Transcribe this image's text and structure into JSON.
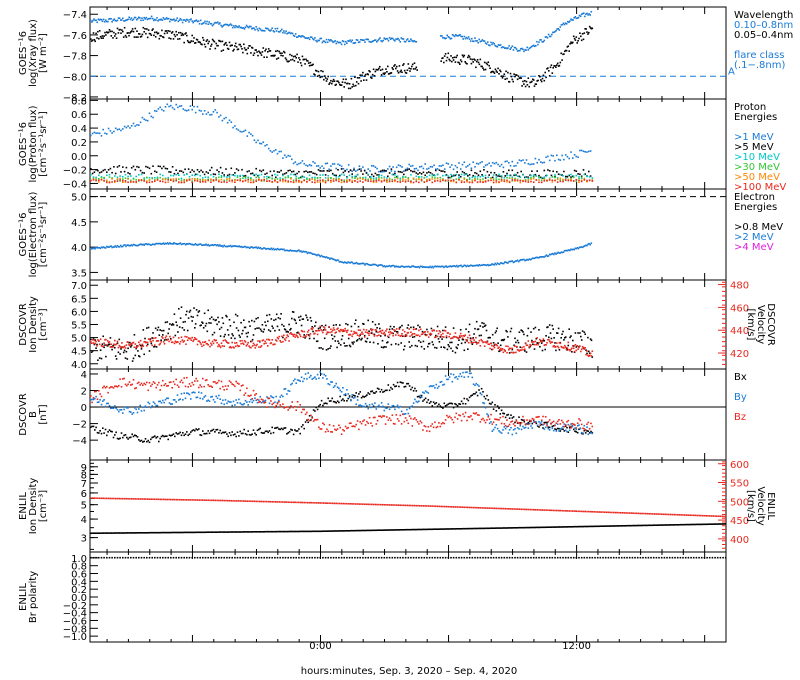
{
  "figure": {
    "xlabel": "hours:minutes, Sep.  3, 2020 – Sep.  4, 2020",
    "xticks": [
      {
        "h": 0,
        "label": "0:00"
      },
      {
        "h": 12,
        "label": "12:00"
      }
    ],
    "x_range_hours": [
      -10.8,
      19
    ]
  },
  "colors": {
    "black": "#000000",
    "blue": "#1a7bd6",
    "cyan": "#00c8c8",
    "green": "#35c635",
    "orange": "#ff8800",
    "red": "#e8281e",
    "magenta": "#e020e0"
  },
  "chart_data": [
    {
      "id": "xray",
      "type": "scatter",
      "ylabel_lines": [
        "GOES−16",
        "log(Xray flux)",
        "[W m−2]"
      ],
      "ylim": [
        -8.22,
        -7.33
      ],
      "yticks": [
        -7.4,
        -7.6,
        -7.8,
        -8.0,
        -8.2
      ],
      "ytick_labels": [
        "−7.4",
        "−7.6",
        "−7.8",
        "−8.0",
        "−8.2"
      ],
      "reference_line": {
        "y": -8.0,
        "label": "A",
        "color": "#1a7bd6"
      },
      "legend": [
        {
          "text": "Wavelength",
          "color": "#000000"
        },
        {
          "text": "0.10–0.8nm",
          "color": "#1a7bd6"
        },
        {
          "text": "0.05–0.4nm",
          "color": "#000000"
        },
        {
          "text": "flare class",
          "color": "#1a7bd6",
          "gap": true
        },
        {
          "text": "(.1−.8nm)",
          "color": "#1a7bd6"
        }
      ],
      "series": [
        {
          "color": "#1a7bd6",
          "spread": 0.02,
          "density": 5,
          "x": [
            -10.8,
            -8,
            -6,
            -4,
            -2,
            -0.5,
            0.8,
            2,
            3.3,
            4.5,
            5.2,
            5.6,
            6.5,
            8,
            9.5,
            10.5,
            11.5,
            12.3,
            12.7
          ],
          "y": [
            -7.47,
            -7.44,
            -7.47,
            -7.52,
            -7.56,
            -7.64,
            -7.68,
            -7.66,
            -7.64,
            -7.67,
            null,
            -7.62,
            -7.62,
            -7.69,
            -7.75,
            -7.64,
            -7.48,
            -7.41,
            -7.39
          ]
        },
        {
          "color": "#000000",
          "spread": 0.05,
          "density": 6,
          "x": [
            -10.8,
            -9,
            -7,
            -5,
            -3,
            -1,
            0.5,
            1.3,
            2,
            3,
            4.5,
            5.2,
            5.6,
            7,
            8,
            9,
            10,
            11,
            11.8,
            12.7
          ],
          "y": [
            -7.62,
            -7.57,
            -7.6,
            -7.7,
            -7.76,
            -7.84,
            -8.05,
            -8.08,
            -8.0,
            -7.93,
            -7.92,
            null,
            -7.82,
            -7.85,
            -7.92,
            -8.03,
            -8.08,
            -7.9,
            -7.66,
            -7.54
          ]
        }
      ]
    },
    {
      "id": "proton",
      "type": "scatter",
      "ylabel_lines": [
        "GOES−16",
        "log(Proton flux)",
        "[cm−2s−1sr−1]"
      ],
      "ylim": [
        -0.48,
        0.82
      ],
      "yticks": [
        0.8,
        0.6,
        0.4,
        0.2,
        0.0,
        -0.2,
        -0.4
      ],
      "ytick_labels": [
        "0.8",
        "0.6",
        "0.4",
        "0.2",
        "0.0",
        "−0.2",
        "−0.4"
      ],
      "legend": [
        {
          "text": "Proton",
          "color": "#000000"
        },
        {
          "text": "Energies",
          "color": "#000000"
        },
        {
          "text": ">1 MeV",
          "color": "#1a7bd6",
          "gap": true
        },
        {
          "text": ">5 MeV",
          "color": "#000000"
        },
        {
          "text": ">10 MeV",
          "color": "#00c8c8"
        },
        {
          "text": ">30 MeV",
          "color": "#35c635"
        },
        {
          "text": ">50 MeV",
          "color": "#ff8800"
        },
        {
          "text": ">100 MeV",
          "color": "#e8281e"
        }
      ],
      "series": [
        {
          "color": "#1a7bd6",
          "spread": 0.05,
          "density": 3,
          "x": [
            -10.8,
            -9,
            -7.3,
            -6.5,
            -5,
            -4,
            -3,
            -1,
            2,
            6,
            9,
            10.5,
            12,
            12.7
          ],
          "y": [
            0.3,
            0.4,
            0.7,
            0.7,
            0.62,
            0.42,
            0.2,
            -0.12,
            -0.2,
            -0.15,
            -0.12,
            -0.05,
            0.02,
            0.08
          ]
        },
        {
          "color": "#000000",
          "spread": 0.06,
          "density": 3,
          "x": [
            -10.8,
            -6,
            -2,
            2,
            6,
            10,
            12.7
          ],
          "y": [
            -0.2,
            -0.22,
            -0.26,
            -0.25,
            -0.26,
            -0.27,
            -0.25
          ]
        },
        {
          "color": "#00c8c8",
          "spread": 0.03,
          "density": 2,
          "x": [
            -10.8,
            12.7
          ],
          "y": [
            -0.3,
            -0.3
          ]
        },
        {
          "color": "#35c635",
          "spread": 0.03,
          "density": 2,
          "x": [
            -10.8,
            12.7
          ],
          "y": [
            -0.34,
            -0.34
          ]
        },
        {
          "color": "#ff8800",
          "spread": 0.03,
          "density": 2,
          "x": [
            -10.8,
            12.7
          ],
          "y": [
            -0.36,
            -0.36
          ]
        },
        {
          "color": "#e8281e",
          "spread": 0.02,
          "density": 2,
          "x": [
            -10.8,
            12.7
          ],
          "y": [
            -0.37,
            -0.37
          ]
        }
      ]
    },
    {
      "id": "electron",
      "type": "scatter",
      "ylabel_lines": [
        "GOES−16",
        "log(Electron flux)",
        "[cm−2s−1sr−1]"
      ],
      "ylim": [
        3.35,
        5.15
      ],
      "yticks": [
        5.0,
        4.5,
        4.0,
        3.5
      ],
      "ytick_labels": [
        "5.0",
        "4.5",
        "4.0",
        "3.5"
      ],
      "reference_line": {
        "y": 5.0,
        "color": "#000000"
      },
      "legend": [
        {
          "text": "Electron",
          "color": "#000000"
        },
        {
          "text": "Energies",
          "color": "#000000"
        },
        {
          "text": ">0.8 MeV",
          "color": "#000000",
          "gap": true
        },
        {
          "text": ">2 MeV",
          "color": "#1a7bd6"
        },
        {
          "text": ">4 MeV",
          "color": "#e020e0"
        }
      ],
      "series": [
        {
          "color": "#1a7bd6",
          "spread": 0.015,
          "density": 5,
          "x": [
            -10.8,
            -9,
            -7,
            -5,
            -3,
            -1,
            0,
            1,
            3,
            5,
            6.5,
            8,
            10,
            12,
            12.7
          ],
          "y": [
            3.97,
            4.03,
            4.07,
            4.03,
            3.98,
            3.92,
            3.82,
            3.7,
            3.62,
            3.6,
            3.62,
            3.65,
            3.77,
            3.97,
            4.07
          ]
        }
      ]
    },
    {
      "id": "density",
      "type": "scatter",
      "ylabel_lines": [
        "DSCOVR",
        "Ion Density",
        "[cm−3]"
      ],
      "ylim": [
        3.8,
        7.2
      ],
      "yticks": [
        4.0,
        4.5,
        5.0,
        5.5,
        6.0,
        6.5,
        7.0
      ],
      "ytick_labels": [
        "4.0",
        "4.5",
        "5.0",
        "5.5",
        "6.0",
        "6.5",
        "7.0"
      ],
      "right_axis": {
        "ylabel_lines": [
          "DSCOVR",
          "Velocity",
          "[km/s]"
        ],
        "ylim": [
          406,
          484
        ],
        "yticks": [
          420,
          440,
          460,
          480
        ],
        "ytick_labels": [
          "420",
          "440",
          "460",
          "480"
        ],
        "color": "#e8281e"
      },
      "series": [
        {
          "color": "#000000",
          "spread": 0.5,
          "density": 6,
          "x": [
            -10.8,
            -9,
            -8,
            -6.5,
            -5,
            -3,
            -1,
            0,
            2,
            3,
            5,
            6.5,
            7.5,
            8.5,
            9.5,
            11,
            12.7
          ],
          "y": [
            4.6,
            4.5,
            5.0,
            5.7,
            5.5,
            5.3,
            5.6,
            5.0,
            5.2,
            5.0,
            5.0,
            4.9,
            5.2,
            4.8,
            4.9,
            5.0,
            4.7
          ]
        },
        {
          "color": "#e8281e",
          "axis": "right",
          "spread": 3.5,
          "density": 6,
          "x": [
            -10.8,
            -9,
            -7,
            -5,
            -3,
            -1,
            0,
            2,
            4,
            6,
            7,
            8,
            9,
            10,
            11,
            12,
            12.7
          ],
          "y": [
            430,
            426,
            432,
            428,
            427,
            436,
            440,
            437,
            438,
            436,
            432,
            426,
            422,
            430,
            428,
            424,
            418
          ]
        }
      ]
    },
    {
      "id": "imf",
      "type": "scatter",
      "ylabel_lines": [
        "DSCOVR",
        "B",
        "[nT]"
      ],
      "ylim": [
        -6.4,
        4.6
      ],
      "yticks": [
        4,
        2,
        0,
        -2,
        -4
      ],
      "ytick_labels": [
        "4",
        "2",
        "0",
        "−2",
        "−4"
      ],
      "reference_line": {
        "y": 0,
        "color": "#000000"
      },
      "legend": [
        {
          "text": "Bx",
          "color": "#000000"
        },
        {
          "text": "By",
          "color": "#1a7bd6",
          "gap": true
        },
        {
          "text": "Bz",
          "color": "#e8281e",
          "gap": true
        }
      ],
      "series": [
        {
          "color": "#000000",
          "spread": 0.4,
          "density": 4,
          "x": [
            -10.8,
            -9.5,
            -8,
            -6,
            -4,
            -2,
            -1,
            0,
            2,
            3,
            4,
            5,
            6,
            7,
            7.5,
            8,
            9,
            10,
            11,
            12,
            12.7
          ],
          "y": [
            -2.5,
            -3.5,
            -4.0,
            -3.0,
            -3.2,
            -2.8,
            -3.0,
            0.5,
            1.5,
            2.2,
            2.8,
            0.5,
            0.0,
            1.0,
            2.0,
            0.2,
            -1.5,
            -2.0,
            -2.5,
            -2.8,
            -3.0
          ]
        },
        {
          "color": "#1a7bd6",
          "spread": 0.5,
          "density": 4,
          "x": [
            -10.8,
            -9,
            -7.5,
            -6,
            -4,
            -2,
            -1,
            0,
            1,
            2,
            3,
            4,
            5,
            6,
            7,
            7.5,
            8,
            9,
            10,
            11,
            12,
            12.7
          ],
          "y": [
            1.0,
            -0.5,
            0.5,
            1.5,
            0.5,
            1.0,
            3.5,
            3.8,
            2.0,
            0.0,
            0.0,
            -0.5,
            2.0,
            3.5,
            3.8,
            1.5,
            -2.5,
            -3.0,
            -2.0,
            -2.5,
            -2.5,
            -3.0
          ]
        },
        {
          "color": "#e8281e",
          "spread": 0.6,
          "density": 4,
          "x": [
            -10.8,
            -9.5,
            -8,
            -6,
            -4,
            -2.5,
            -1,
            0,
            1,
            2,
            3,
            4,
            5,
            6,
            7,
            8,
            9,
            10,
            11,
            12,
            12.7
          ],
          "y": [
            1.0,
            3.0,
            2.5,
            3.0,
            2.5,
            0.5,
            0.0,
            -2.5,
            -2.8,
            -2.0,
            -1.5,
            -1.5,
            -2.5,
            -1.5,
            -1.0,
            -1.5,
            -2.0,
            -1.5,
            -2.0,
            -2.0,
            -2.5
          ]
        }
      ]
    },
    {
      "id": "enlil_density",
      "type": "scatter",
      "ylabel_lines": [
        "ENLIL",
        "Ion Density",
        "[cm−3]"
      ],
      "ylim": [
        2.4,
        10
      ],
      "log": true,
      "yticks": [
        3,
        4,
        5,
        6,
        7,
        8,
        9
      ],
      "ytick_labels": [
        "3",
        "4",
        "5",
        "6",
        "7",
        "8",
        "9"
      ],
      "right_axis": {
        "ylabel_lines": [
          "ENLIL",
          "Velocity",
          "[km/s]"
        ],
        "ylim": [
          365,
          610
        ],
        "yticks": [
          400,
          450,
          500,
          550,
          600
        ],
        "ytick_labels": [
          "400",
          "450",
          "500",
          "550",
          "600"
        ],
        "color": "#e8281e"
      },
      "series": [
        {
          "color": "#000000",
          "spread": 0.0,
          "density": 4,
          "x": [
            -10.8,
            0,
            10,
            19
          ],
          "y": [
            3.2,
            3.3,
            3.5,
            3.7
          ]
        },
        {
          "color": "#e8281e",
          "axis": "right",
          "spread": 0.0,
          "density": 3,
          "x": [
            -10.8,
            -5,
            0,
            5,
            10,
            15,
            19
          ],
          "y": [
            508,
            502,
            495,
            487,
            477,
            467,
            459
          ]
        }
      ]
    },
    {
      "id": "polarity",
      "type": "scatter",
      "ylabel_lines": [
        "ENLIL",
        "Br polarity"
      ],
      "ylim": [
        -1.15,
        1.15
      ],
      "yticks": [
        1.0,
        0.8,
        0.6,
        0.4,
        0.2,
        0.0,
        -0.2,
        -0.4,
        -0.6,
        -0.8,
        -1.0
      ],
      "ytick_labels": [
        "1.0",
        "0.8",
        "0.6",
        "0.4",
        "0.2",
        "0.0",
        "−0.2",
        "−0.4",
        "−0.6",
        "−0.8",
        "−1.0"
      ],
      "series": [
        {
          "color": "#000000",
          "spread": 0.0,
          "density": 2,
          "x": [
            -10.8,
            19
          ],
          "y": [
            1.0,
            1.0
          ]
        }
      ]
    }
  ]
}
